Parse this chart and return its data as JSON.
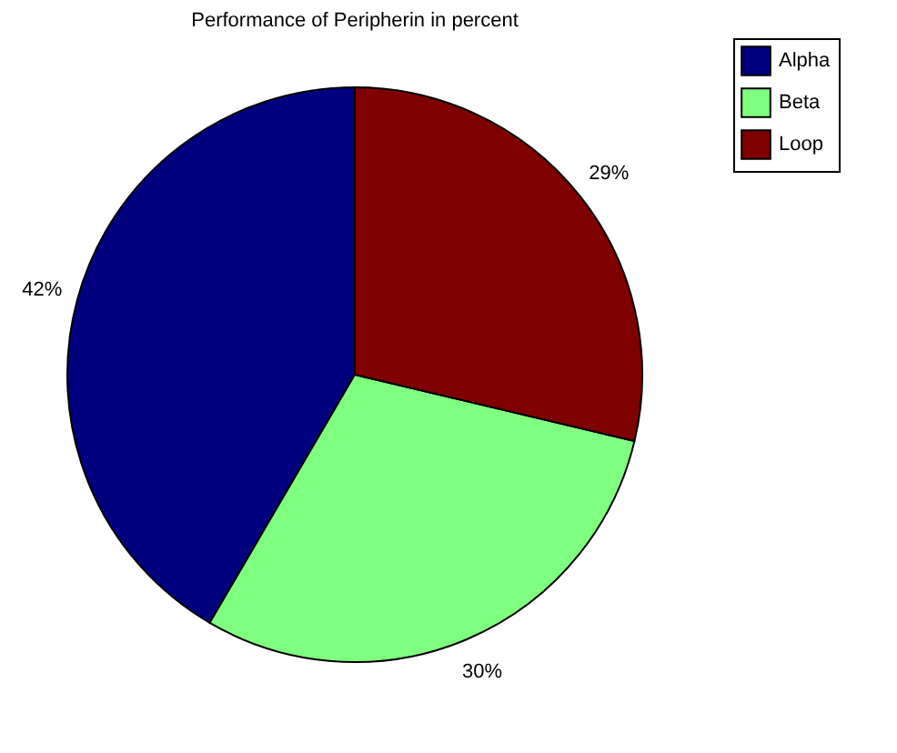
{
  "chart_data": {
    "type": "pie",
    "title": "Performance of Peripherin in percent",
    "categories": [
      "Alpha",
      "Beta",
      "Loop"
    ],
    "values": [
      42,
      30,
      29
    ],
    "colors": [
      "#00007f",
      "#7fff7f",
      "#7f0000"
    ],
    "value_labels": [
      "42%",
      "30%",
      "29%"
    ],
    "legend": "top right"
  }
}
